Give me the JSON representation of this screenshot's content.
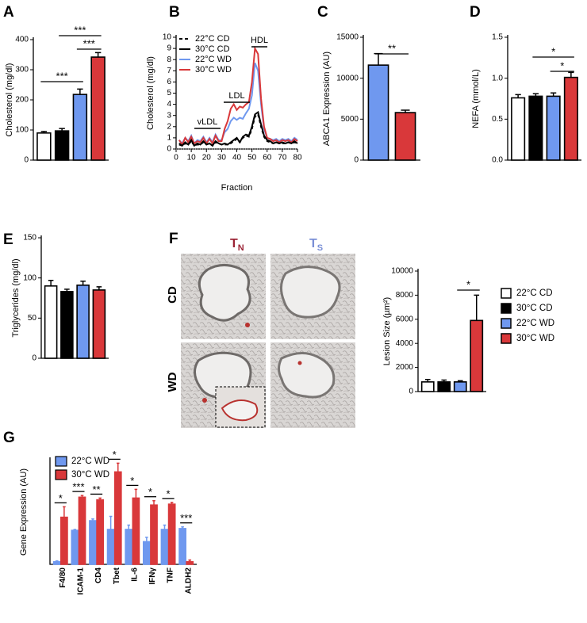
{
  "chart_data": [
    {
      "type": "bar",
      "panel": "A",
      "y_label": "Cholesterol (mg/dl)",
      "categories": [
        null,
        null,
        null,
        null
      ],
      "series": [
        {
          "colors": [
            "#ffffff",
            "#000000",
            "#6f98ef",
            "#d9383a"
          ],
          "values": [
            90,
            97,
            218,
            342
          ],
          "errors": [
            5,
            8,
            18,
            15
          ]
        }
      ],
      "ylim": [
        0,
        400
      ],
      "yticks": [
        0,
        100,
        200,
        300,
        400
      ],
      "annotations": [
        "***",
        "***",
        "***"
      ]
    },
    {
      "type": "line",
      "panel": "B",
      "y_label": "Cholesterol (mg/dl)",
      "x_label": "Fraction",
      "x": [
        2,
        4,
        6,
        8,
        10,
        12,
        14,
        16,
        18,
        20,
        22,
        24,
        26,
        28,
        30,
        32,
        34,
        36,
        38,
        40,
        42,
        44,
        46,
        48,
        50,
        52,
        54,
        56,
        58,
        60,
        62,
        64,
        66,
        68,
        70,
        72,
        74,
        76,
        78,
        80
      ],
      "series": [
        {
          "name": "22°C CD",
          "color": "#000000",
          "style": "dashed",
          "values": [
            0.4,
            0.3,
            0.5,
            0.4,
            0.7,
            0.3,
            0.4,
            0.4,
            0.6,
            0.4,
            0.5,
            0.3,
            0.6,
            0.5,
            0.4,
            0.4,
            0.4,
            0.5,
            0.7,
            0.9,
            0.6,
            1.0,
            1.2,
            1.1,
            1.8,
            2.9,
            3.1,
            2.0,
            1.1,
            0.7,
            0.6,
            0.5,
            0.6,
            0.5,
            0.5,
            0.5,
            0.6,
            0.5,
            0.6,
            0.5
          ]
        },
        {
          "name": "30°C CD",
          "color": "#000000",
          "style": "solid",
          "values": [
            0.5,
            0.3,
            0.6,
            0.4,
            0.8,
            0.3,
            0.5,
            0.4,
            0.7,
            0.4,
            0.5,
            0.3,
            0.7,
            0.5,
            0.4,
            0.5,
            0.4,
            0.6,
            0.8,
            1.0,
            0.6,
            1.1,
            1.3,
            1.2,
            2.0,
            3.1,
            3.3,
            2.2,
            1.2,
            0.8,
            0.7,
            0.5,
            0.6,
            0.5,
            0.6,
            0.5,
            0.6,
            0.5,
            0.7,
            0.5
          ]
        },
        {
          "name": "22°C WD",
          "color": "#6f98ef",
          "style": "solid",
          "values": [
            0.8,
            0.5,
            1.0,
            0.7,
            1.2,
            0.5,
            0.8,
            0.7,
            1.1,
            0.6,
            1.0,
            0.6,
            1.3,
            0.8,
            0.8,
            1.5,
            1.8,
            2.5,
            2.8,
            2.6,
            2.8,
            2.7,
            3.2,
            3.6,
            4.8,
            7.7,
            7.0,
            4.0,
            1.8,
            1.0,
            0.9,
            0.8,
            0.9,
            0.7,
            0.9,
            0.8,
            0.9,
            0.7,
            1.0,
            0.8
          ]
        },
        {
          "name": "30°C WD",
          "color": "#d9383a",
          "style": "solid",
          "values": [
            0.8,
            0.4,
            1.0,
            0.6,
            1.1,
            0.5,
            0.7,
            0.6,
            1.0,
            0.5,
            0.9,
            0.5,
            1.2,
            0.7,
            0.7,
            1.8,
            2.5,
            3.6,
            4.0,
            3.5,
            3.8,
            3.7,
            4.0,
            4.2,
            6.0,
            9.0,
            8.5,
            4.5,
            2.0,
            1.0,
            0.9,
            0.7,
            0.8,
            0.6,
            0.8,
            0.7,
            0.8,
            0.6,
            0.9,
            0.7
          ]
        }
      ],
      "xlim": [
        0,
        80
      ],
      "xticks": [
        0,
        10,
        20,
        30,
        40,
        50,
        60,
        70,
        80
      ],
      "ylim": [
        0,
        10
      ],
      "yticks": [
        0,
        1,
        2,
        3,
        4,
        5,
        6,
        7,
        8,
        9,
        10
      ],
      "hline": 0,
      "annotations": [
        "vLDL",
        "LDL",
        "HDL"
      ],
      "legend": "upper left"
    },
    {
      "type": "bar",
      "panel": "C",
      "y_label": "ABCA1 Expression (AU)",
      "categories": [
        null,
        null
      ],
      "series": [
        {
          "colors": [
            "#6f98ef",
            "#d9383a"
          ],
          "values": [
            11600,
            5800
          ],
          "errors": [
            1400,
            300
          ]
        }
      ],
      "ylim": [
        0,
        15000
      ],
      "yticks": [
        0,
        5000,
        10000,
        15000
      ],
      "annotations": [
        "**"
      ]
    },
    {
      "type": "bar",
      "panel": "D",
      "y_label": "NEFA (mmol/L)",
      "categories": [
        null,
        null,
        null,
        null
      ],
      "series": [
        {
          "colors": [
            "#ffffff",
            "#000000",
            "#6f98ef",
            "#d9383a"
          ],
          "values": [
            0.76,
            0.78,
            0.78,
            1.01
          ],
          "errors": [
            0.04,
            0.03,
            0.04,
            0.06
          ]
        }
      ],
      "ylim": [
        0,
        1.5
      ],
      "yticks": [
        {
          "value": 0,
          "label": "0.0"
        },
        0.5,
        {
          "value": 1,
          "label": "1.0"
        },
        1.5
      ],
      "annotations": [
        "*",
        "*"
      ]
    },
    {
      "type": "bar",
      "panel": "E",
      "y_label": "Triglycerides (mg/dl)",
      "categories": [
        null,
        null,
        null,
        null
      ],
      "series": [
        {
          "colors": [
            "#ffffff",
            "#000000",
            "#6f98ef",
            "#d9383a"
          ],
          "values": [
            90,
            83,
            91,
            85
          ],
          "errors": [
            7,
            3,
            5,
            4
          ]
        }
      ],
      "ylim": [
        0,
        150
      ],
      "yticks": [
        0,
        50,
        100,
        150
      ]
    },
    {
      "type": "bar",
      "y_label": "Lesion Size (µm²)",
      "categories": [
        "22°C CD",
        "30°C CD",
        "22°C WD",
        "30°C WD"
      ],
      "series": [
        {
          "colors": [
            "#ffffff",
            "#000000",
            "#6f98ef",
            "#d9383a"
          ],
          "values": [
            800,
            800,
            800,
            5900
          ],
          "errors": [
            200,
            150,
            100,
            2100
          ]
        }
      ],
      "ylim": [
        0,
        10000
      ],
      "yticks": [
        0,
        2000,
        4000,
        6000,
        8000,
        10000
      ],
      "annotations": [
        "*"
      ],
      "legend": "right"
    },
    {
      "type": "bar",
      "panel": "G",
      "y_label": "Gene Expression (AU)",
      "categories": [
        "F4/80",
        "ICAM-1",
        "CD4",
        "Tbet",
        "IL-6",
        "IFNγ",
        "TNF",
        "ALDH2"
      ],
      "series": [
        {
          "name": "22°C WD",
          "color": "#6f98ef",
          "values": [
            0.3,
            3.9,
            5.0,
            4.0,
            4.0,
            2.6,
            4.0,
            4.1
          ],
          "errors": [
            0.1,
            0.1,
            0.2,
            1.5,
            0.5,
            0.5,
            0.5,
            0.2
          ]
        },
        {
          "name": "30°C WD",
          "color": "#d9383a",
          "values": [
            5.4,
            7.7,
            7.4,
            10.6,
            7.6,
            6.8,
            6.9,
            0.3
          ],
          "errors": [
            1.2,
            0.2,
            0.2,
            1.0,
            1.0,
            0.5,
            0.2,
            0.2
          ]
        }
      ],
      "ylim": [
        0,
        12
      ],
      "annotations": [
        "*",
        "***",
        "**",
        "*",
        "*",
        "*",
        "*",
        "***"
      ],
      "legend": "upper left"
    }
  ],
  "micrographs": {
    "panel": "F",
    "columns": [
      {
        "text": "T",
        "subscript": "N"
      },
      {
        "text": "T",
        "subscript": "S"
      }
    ],
    "rows": [
      "CD",
      "WD"
    ]
  }
}
